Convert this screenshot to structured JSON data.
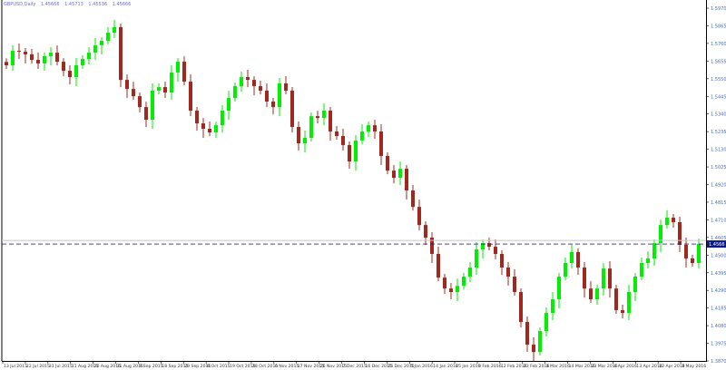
{
  "header": {
    "symbol_timeframe": "GBPUSD,Daily",
    "ohlc_readout": [
      "1.45666",
      "1.45713",
      "1.45536",
      "1.45666"
    ]
  },
  "colors": {
    "bull": "#00ee00",
    "bear": "#a0281e",
    "background": "#ffffff",
    "bid_line": "#1a1a80",
    "price_label_bg": "#0a1a8a"
  },
  "chart_data": {
    "type": "candlestick",
    "title": "GBPUSD,Daily",
    "ylim": [
      1.387,
      1.597
    ],
    "grid": false,
    "y_ticks": [
      "1.5970",
      "1.5865",
      "1.5760",
      "1.5655",
      "1.5550",
      "1.5445",
      "1.5340",
      "1.5235",
      "1.5130",
      "1.5025",
      "1.4920",
      "1.4815",
      "1.4710",
      "1.4605",
      "1.4500",
      "1.4395",
      "1.4290",
      "1.4185",
      "1.4080",
      "1.3975",
      "1.3870"
    ],
    "x_ticks": [
      "13 Jul 2015",
      "22 Jul 2015",
      "31 Jul 2015",
      "11 Aug 2015",
      "20 Aug 2015",
      "31 Aug 2015",
      "9 Sep 2015",
      "18 Sep 2015",
      "29 Sep 2015",
      "8 Oct 2015",
      "19 Oct 2015",
      "28 Oct 2015",
      "6 Nov 2015",
      "17 Nov 2015",
      "26 Nov 2015",
      "7 Dec 2015",
      "16 Dec 2015",
      "25 Dec 2015",
      "5 Jan 2016",
      "14 Jan 2016",
      "25 Jan 2016",
      "3 Feb 2016",
      "12 Feb 2016",
      "23 Feb 2016",
      "3 Mar 2016",
      "14 Mar 2016",
      "23 Mar 2016",
      "4 Apr 2016",
      "13 Apr 2016",
      "22 Apr 2016",
      "3 May 2016"
    ],
    "current_price": "1.4566",
    "closes": [
      1.563,
      1.5716,
      1.5711,
      1.5695,
      1.5662,
      1.5641,
      1.5684,
      1.5705,
      1.5651,
      1.5597,
      1.556,
      1.563,
      1.5668,
      1.5705,
      1.5749,
      1.5776,
      1.5824,
      1.5857,
      1.5543,
      1.5489,
      1.5446,
      1.5381,
      1.5306,
      1.5479,
      1.55,
      1.5468,
      1.5587,
      1.5651,
      1.5533,
      1.536,
      1.5284,
      1.5252,
      1.523,
      1.5273,
      1.536,
      1.5435,
      1.5506,
      1.556,
      1.5543,
      1.5506,
      1.5479,
      1.5414,
      1.5381,
      1.5522,
      1.5479,
      1.5263,
      1.5165,
      1.5198,
      1.5327,
      1.5316,
      1.536,
      1.5236,
      1.5209,
      1.5155,
      1.5057,
      1.5182,
      1.5236,
      1.5273,
      1.5236,
      1.509,
      1.5003,
      1.496,
      1.5014,
      1.4885,
      1.4787,
      1.4679,
      1.4604,
      1.4507,
      1.4366,
      1.4301,
      1.428,
      1.4317,
      1.4372,
      1.4426,
      1.4534,
      1.4571,
      1.455,
      1.4507,
      1.4426,
      1.4372,
      1.428,
      1.4102,
      1.3967,
      1.3923,
      1.4048,
      1.4156,
      1.4237,
      1.4372,
      1.4453,
      1.4518,
      1.4426,
      1.4301,
      1.4237,
      1.4301,
      1.442,
      1.4301,
      1.4172,
      1.4156,
      1.428,
      1.4372,
      1.4453,
      1.448,
      1.4571,
      1.4679,
      1.4723,
      1.4696,
      1.4561,
      1.448,
      1.4453,
      1.4566
    ]
  }
}
